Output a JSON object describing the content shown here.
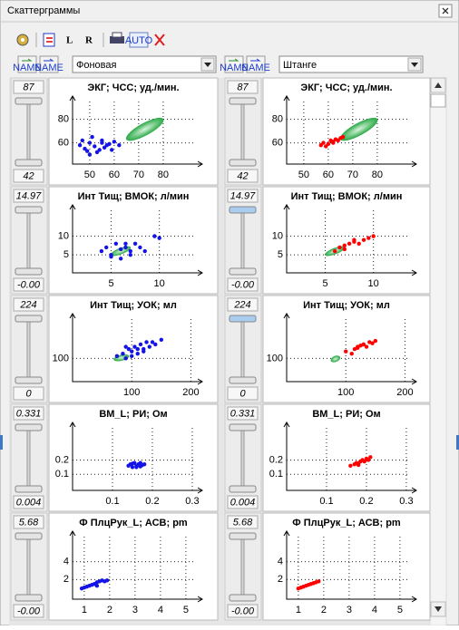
{
  "window": {
    "title": "Скаттерграммы"
  },
  "toolbar": {
    "l": "L",
    "r": "R",
    "auto": "AUTO",
    "name": "NAME"
  },
  "selectors": [
    {
      "label": "Фоновая"
    },
    {
      "label": "Штанге"
    }
  ],
  "rows": [
    [
      {
        "title": "ЭКГ; ЧСС; уд./мин.",
        "slider_max": "87",
        "slider_min": "42",
        "xlim": [
          43,
          93
        ],
        "ylim": [
          42,
          95
        ],
        "xticks": [
          50,
          60,
          70,
          80
        ],
        "yticks": [
          60,
          80
        ],
        "color": "#1414e6",
        "points": {
          "x": [
            46,
            48,
            50,
            52,
            53,
            55,
            56,
            58,
            50,
            54,
            57,
            60,
            47,
            51,
            59,
            62,
            49,
            55
          ],
          "y": [
            58,
            55,
            60,
            57,
            52,
            62,
            56,
            59,
            50,
            54,
            58,
            61,
            62,
            65,
            54,
            58,
            53,
            60
          ]
        },
        "ellipse": {
          "x1": 65,
          "y1": 63,
          "x2": 80,
          "y2": 80,
          "color": "#2eaa4a"
        }
      },
      {
        "title": "ЭКГ; ЧСС; уд./мин.",
        "slider_max": "87",
        "slider_min": "42",
        "xlim": [
          43,
          93
        ],
        "ylim": [
          42,
          95
        ],
        "xticks": [
          50,
          60,
          70,
          80
        ],
        "yticks": [
          60,
          80
        ],
        "color": "#ff0000",
        "points": {
          "x": [
            57,
            58,
            60,
            61,
            62,
            63,
            64,
            65,
            66,
            59,
            62
          ],
          "y": [
            58,
            60,
            59,
            62,
            61,
            63,
            62,
            64,
            65,
            57,
            60
          ]
        },
        "ellipse": {
          "x1": 65,
          "y1": 63,
          "x2": 80,
          "y2": 80,
          "color": "#2eaa4a"
        }
      }
    ],
    [
      {
        "title": "Инт Тищ; ВМОК; л/мин",
        "slider_max": "14.97",
        "slider_min": "-0.00",
        "xlim": [
          1,
          13.7
        ],
        "ylim": [
          0.2,
          16.9
        ],
        "xticks": [
          5,
          10
        ],
        "yticks": [
          5,
          10
        ],
        "color": "#1414e6",
        "points": {
          "x": [
            4,
            4.5,
            5,
            5.5,
            6,
            6.5,
            7,
            7.5,
            8,
            5,
            6,
            7,
            9.5,
            10,
            6.5,
            8.5
          ],
          "y": [
            6,
            7,
            5,
            8,
            6.5,
            7,
            6,
            8,
            7,
            4.5,
            4,
            5,
            10,
            9.5,
            8,
            6
          ]
        },
        "ellipse": {
          "x1": 5,
          "y1": 5,
          "x2": 7,
          "y2": 7,
          "color": "#2eaa4a"
        }
      },
      {
        "title": "Инт Тищ; ВМОК; л/мин",
        "slider_max": "14.97",
        "slider_min": "-0.00",
        "xlim": [
          1,
          13.7
        ],
        "ylim": [
          0.2,
          16.9
        ],
        "xticks": [
          5,
          10
        ],
        "yticks": [
          5,
          10
        ],
        "color": "#ff0000",
        "points": {
          "x": [
            6,
            6.5,
            7,
            7.5,
            8,
            8.5,
            9,
            9.5,
            10,
            7,
            8
          ],
          "y": [
            6,
            7,
            7.5,
            8,
            8.5,
            8,
            9,
            9.5,
            10,
            6.5,
            9
          ]
        },
        "ellipse": {
          "x1": 5,
          "y1": 5,
          "x2": 7,
          "y2": 7,
          "color": "#2eaa4a"
        }
      }
    ],
    [
      {
        "title": "Инт Тищ; УОК; мл",
        "slider_max": "224",
        "slider_min": "0",
        "xlim": [
          0,
          207
        ],
        "ylim": [
          0,
          269
        ],
        "xticks": [
          100,
          200
        ],
        "yticks": [
          100
        ],
        "color": "#1414e6",
        "points": {
          "x": [
            75,
            85,
            90,
            95,
            100,
            105,
            110,
            115,
            120,
            125,
            130,
            140,
            150,
            100,
            110,
            120,
            90,
            135
          ],
          "y": [
            110,
            120,
            100,
            140,
            130,
            150,
            120,
            160,
            140,
            170,
            150,
            160,
            180,
            110,
            140,
            130,
            150,
            170
          ]
        },
        "ellipse": {
          "x1": 70,
          "y1": 95,
          "x2": 95,
          "y2": 110,
          "color": "#2eaa4a"
        }
      },
      {
        "title": "Инт Тищ; УОК; мл",
        "slider_max": "224",
        "slider_min": "0",
        "xlim": [
          0,
          207
        ],
        "ylim": [
          0,
          269
        ],
        "xticks": [
          100,
          200
        ],
        "yticks": [
          100
        ],
        "color": "#ff0000",
        "points": {
          "x": [
            100,
            110,
            115,
            120,
            125,
            130,
            135,
            140,
            145,
            150,
            120,
            130
          ],
          "y": [
            130,
            120,
            140,
            150,
            155,
            160,
            150,
            170,
            165,
            175,
            145,
            160
          ]
        },
        "ellipse": {
          "x1": 75,
          "y1": 90,
          "x2": 90,
          "y2": 105,
          "color": "#2eaa4a"
        }
      }
    ],
    [
      {
        "title": "ВМ_L; РИ; Ом",
        "slider_max": "0.331",
        "slider_min": "0.004",
        "xlim": [
          0,
          0.307
        ],
        "ylim": [
          -0.0125,
          0.425
        ],
        "xticks": [
          0.1,
          0.2,
          0.3
        ],
        "yticks": [
          0.1,
          0.2
        ],
        "color": "#1414e6",
        "points": {
          "x": [
            0.14,
            0.145,
            0.15,
            0.155,
            0.16,
            0.165,
            0.17,
            0.175,
            0.18,
            0.15,
            0.16,
            0.17
          ],
          "y": [
            0.16,
            0.17,
            0.15,
            0.18,
            0.16,
            0.17,
            0.155,
            0.165,
            0.17,
            0.175,
            0.15,
            0.18
          ]
        }
      },
      {
        "title": "ВМ_L; РИ; Ом",
        "slider_max": "0.331",
        "slider_min": "0.004",
        "xlim": [
          0,
          0.307
        ],
        "ylim": [
          -0.0125,
          0.425
        ],
        "xticks": [
          0.1,
          0.2,
          0.3
        ],
        "yticks": [
          0.1,
          0.2
        ],
        "color": "#ff0000",
        "points": {
          "x": [
            0.16,
            0.17,
            0.175,
            0.18,
            0.185,
            0.19,
            0.195,
            0.2,
            0.205,
            0.21,
            0.18
          ],
          "y": [
            0.16,
            0.17,
            0.18,
            0.175,
            0.19,
            0.2,
            0.19,
            0.21,
            0.2,
            0.22,
            0.165
          ]
        }
      }
    ],
    [
      {
        "title": "Ф ПлцРук_L; АСВ; pm",
        "slider_max": "5.68",
        "slider_min": "-0.00",
        "xlim": [
          0.54,
          5.36
        ],
        "ylim": [
          -0.2,
          6.8
        ],
        "xticks": [
          1,
          2,
          3,
          4,
          5
        ],
        "yticks": [
          2,
          4
        ],
        "color": "#1414e6",
        "points": {
          "x": [
            0.9,
            1,
            1.1,
            1.2,
            1.3,
            1.4,
            1.5,
            1.6,
            1.7,
            1.8,
            1.9,
            1.5
          ],
          "y": [
            1,
            1.1,
            1.2,
            1.3,
            1.4,
            1.5,
            1.7,
            1.8,
            1.9,
            1.8,
            1.9,
            1.3
          ]
        }
      },
      {
        "title": "Ф ПлцРук_L; АСВ; pm",
        "slider_max": "5.68",
        "slider_min": "-0.00",
        "xlim": [
          0.54,
          5.36
        ],
        "ylim": [
          -0.2,
          6.8
        ],
        "xticks": [
          1,
          2,
          3,
          4,
          5
        ],
        "yticks": [
          2,
          4
        ],
        "color": "#ff0000",
        "points": {
          "x": [
            1,
            1.1,
            1.2,
            1.3,
            1.4,
            1.5,
            1.6,
            1.7,
            1.8
          ],
          "y": [
            1,
            1.1,
            1.2,
            1.3,
            1.4,
            1.5,
            1.6,
            1.7,
            1.8
          ]
        }
      }
    ]
  ]
}
